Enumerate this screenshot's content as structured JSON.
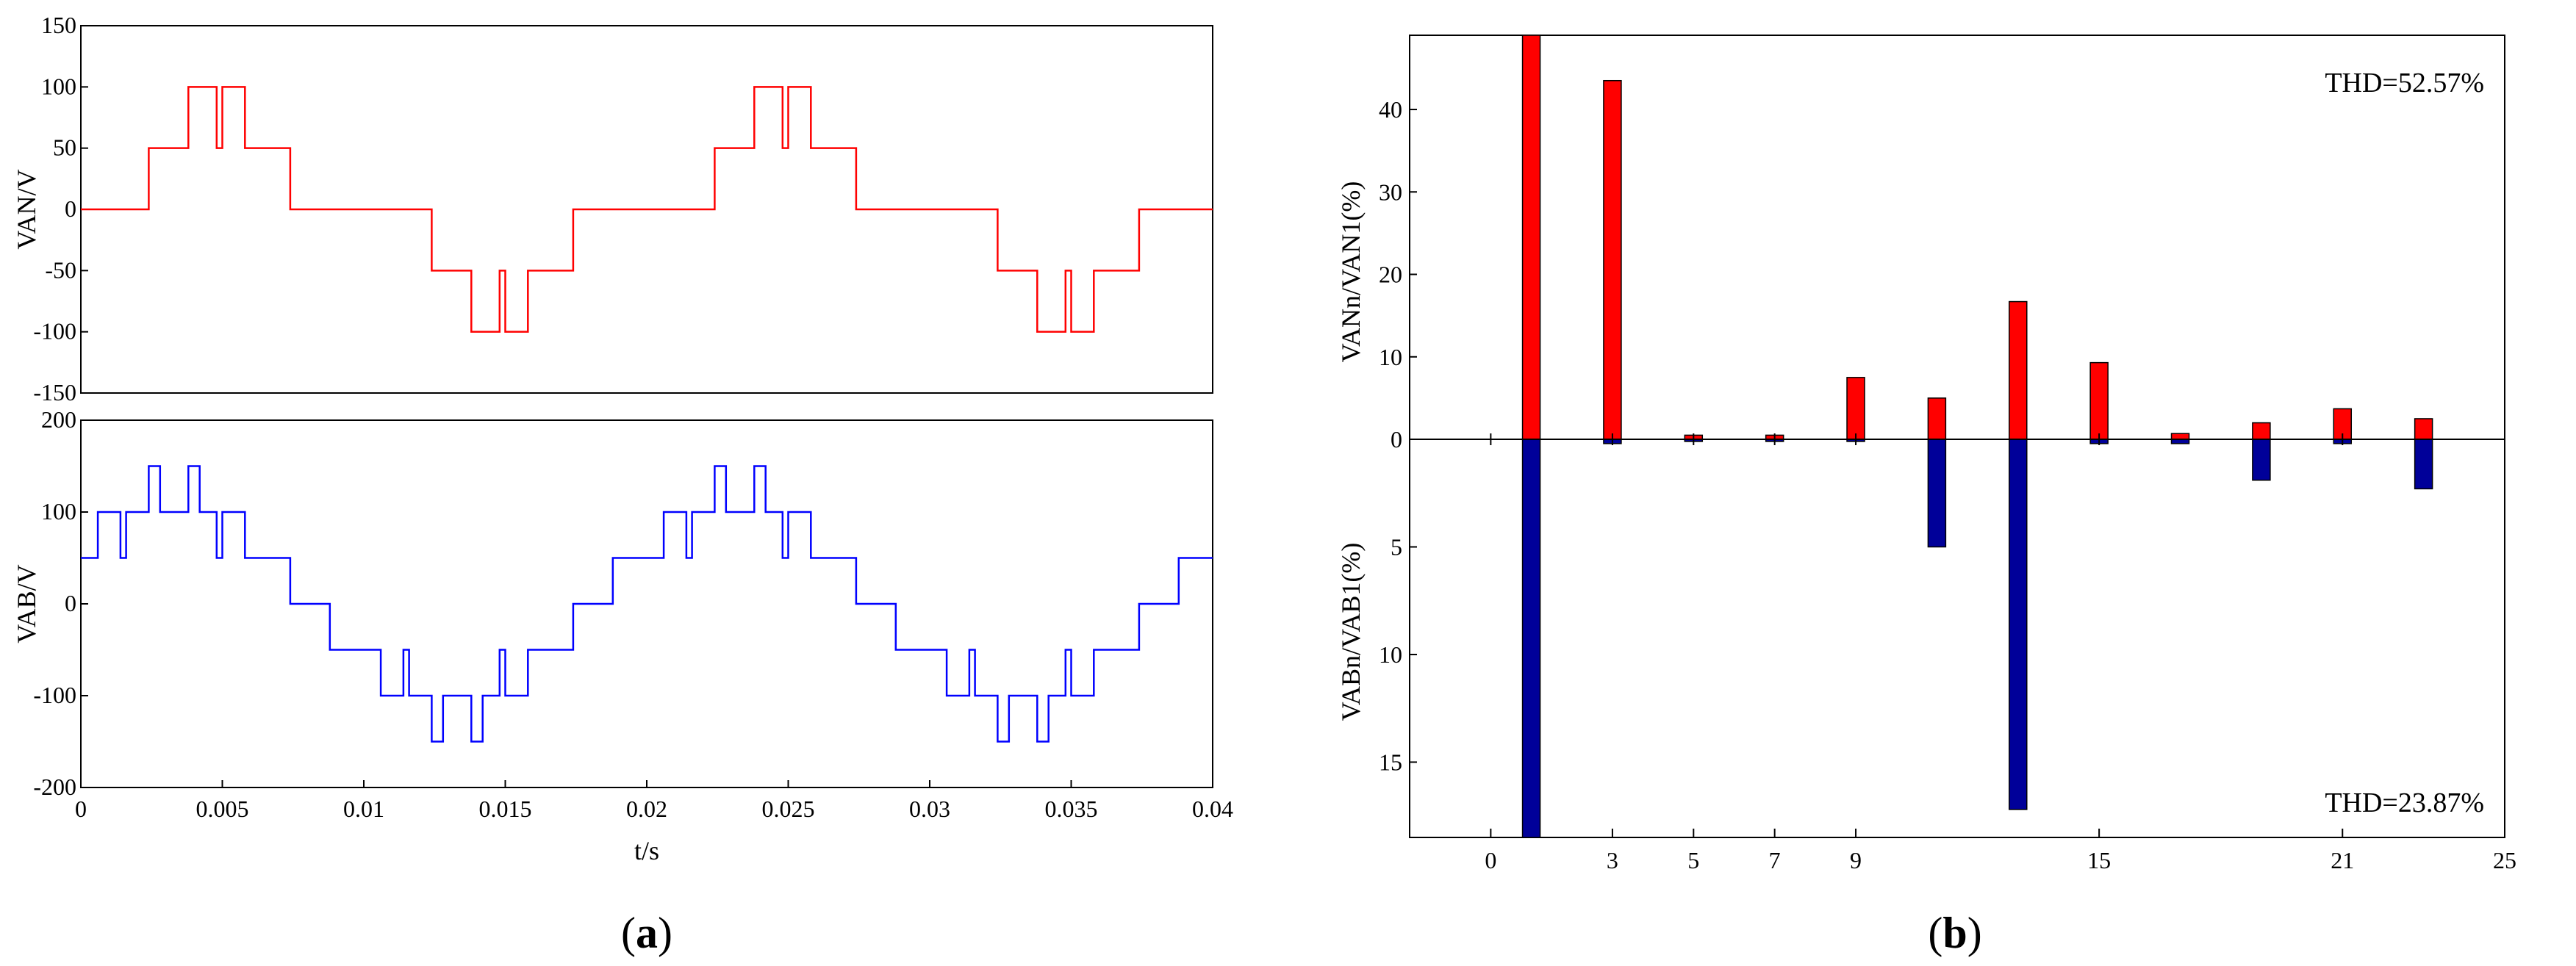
{
  "chart_data": [
    {
      "id": "a-top",
      "type": "line",
      "step": true,
      "ylabel": "VAN/V",
      "ylim": [
        -150,
        150
      ],
      "yticks": [
        150,
        100,
        50,
        0,
        -50,
        -100,
        -150
      ],
      "xlim": [
        0,
        0.04
      ],
      "color": "#ff0000",
      "series": [
        {
          "name": "VAN",
          "points": [
            [
              0,
              0
            ],
            [
              0.0024,
              0
            ],
            [
              0.0024,
              50
            ],
            [
              0.0038,
              50
            ],
            [
              0.0038,
              100
            ],
            [
              0.0048,
              100
            ],
            [
              0.0048,
              50
            ],
            [
              0.005,
              50
            ],
            [
              0.005,
              100
            ],
            [
              0.0058,
              100
            ],
            [
              0.0058,
              50
            ],
            [
              0.0074,
              50
            ],
            [
              0.0074,
              0
            ],
            [
              0.0124,
              0
            ],
            [
              0.0124,
              -50
            ],
            [
              0.0138,
              -50
            ],
            [
              0.0138,
              -100
            ],
            [
              0.0148,
              -100
            ],
            [
              0.0148,
              -50
            ],
            [
              0.015,
              -50
            ],
            [
              0.015,
              -100
            ],
            [
              0.0158,
              -100
            ],
            [
              0.0158,
              -50
            ],
            [
              0.0174,
              -50
            ],
            [
              0.0174,
              0
            ],
            [
              0.0224,
              0
            ],
            [
              0.0224,
              50
            ],
            [
              0.0238,
              50
            ],
            [
              0.0238,
              100
            ],
            [
              0.0248,
              100
            ],
            [
              0.0248,
              50
            ],
            [
              0.025,
              50
            ],
            [
              0.025,
              100
            ],
            [
              0.0258,
              100
            ],
            [
              0.0258,
              50
            ],
            [
              0.0274,
              50
            ],
            [
              0.0274,
              0
            ],
            [
              0.0324,
              0
            ],
            [
              0.0324,
              -50
            ],
            [
              0.0338,
              -50
            ],
            [
              0.0338,
              -100
            ],
            [
              0.0348,
              -100
            ],
            [
              0.0348,
              -50
            ],
            [
              0.035,
              -50
            ],
            [
              0.035,
              -100
            ],
            [
              0.0358,
              -100
            ],
            [
              0.0358,
              -50
            ],
            [
              0.0374,
              -50
            ],
            [
              0.0374,
              0
            ],
            [
              0.04,
              0
            ]
          ]
        }
      ]
    },
    {
      "id": "a-bottom",
      "type": "line",
      "step": true,
      "ylabel": "VAB/V",
      "xlabel": "t/s",
      "ylim": [
        -200,
        200
      ],
      "yticks": [
        200,
        100,
        0,
        -100,
        -200
      ],
      "xlim": [
        0,
        0.04
      ],
      "xticks": [
        0,
        0.005,
        0.01,
        0.015,
        0.02,
        0.025,
        0.03,
        0.035,
        0.04
      ],
      "xtick_labels": [
        "0",
        "0.005",
        "0.01",
        "0.015",
        "0.02",
        "0.025",
        "0.03",
        "0.035",
        "0.04"
      ],
      "color": "#0000ff",
      "series": [
        {
          "name": "VAB",
          "points": [
            [
              0,
              50
            ],
            [
              0.0006,
              50
            ],
            [
              0.0006,
              100
            ],
            [
              0.0014,
              100
            ],
            [
              0.0014,
              50
            ],
            [
              0.0016,
              50
            ],
            [
              0.0016,
              100
            ],
            [
              0.0024,
              100
            ],
            [
              0.0024,
              150
            ],
            [
              0.0028,
              150
            ],
            [
              0.0028,
              100
            ],
            [
              0.0038,
              100
            ],
            [
              0.0038,
              150
            ],
            [
              0.0042,
              150
            ],
            [
              0.0042,
              100
            ],
            [
              0.0048,
              100
            ],
            [
              0.0048,
              50
            ],
            [
              0.005,
              50
            ],
            [
              0.005,
              100
            ],
            [
              0.0058,
              100
            ],
            [
              0.0058,
              50
            ],
            [
              0.0074,
              50
            ],
            [
              0.0074,
              0
            ],
            [
              0.0088,
              0
            ],
            [
              0.0088,
              -50
            ],
            [
              0.0106,
              -50
            ],
            [
              0.0106,
              -100
            ],
            [
              0.0114,
              -100
            ],
            [
              0.0114,
              -50
            ],
            [
              0.0116,
              -50
            ],
            [
              0.0116,
              -100
            ],
            [
              0.0124,
              -100
            ],
            [
              0.0124,
              -150
            ],
            [
              0.0128,
              -150
            ],
            [
              0.0128,
              -100
            ],
            [
              0.0138,
              -100
            ],
            [
              0.0138,
              -150
            ],
            [
              0.0142,
              -150
            ],
            [
              0.0142,
              -100
            ],
            [
              0.0148,
              -100
            ],
            [
              0.0148,
              -50
            ],
            [
              0.015,
              -50
            ],
            [
              0.015,
              -100
            ],
            [
              0.0158,
              -100
            ],
            [
              0.0158,
              -50
            ],
            [
              0.0174,
              -50
            ],
            [
              0.0174,
              0
            ],
            [
              0.0188,
              0
            ],
            [
              0.0188,
              50
            ],
            [
              0.0206,
              50
            ],
            [
              0.0206,
              100
            ],
            [
              0.0214,
              100
            ],
            [
              0.0214,
              50
            ],
            [
              0.0216,
              50
            ],
            [
              0.0216,
              100
            ],
            [
              0.0224,
              100
            ],
            [
              0.0224,
              150
            ],
            [
              0.0228,
              150
            ],
            [
              0.0228,
              100
            ],
            [
              0.0238,
              100
            ],
            [
              0.0238,
              150
            ],
            [
              0.0242,
              150
            ],
            [
              0.0242,
              100
            ],
            [
              0.0248,
              100
            ],
            [
              0.0248,
              50
            ],
            [
              0.025,
              50
            ],
            [
              0.025,
              100
            ],
            [
              0.0258,
              100
            ],
            [
              0.0258,
              50
            ],
            [
              0.0274,
              50
            ],
            [
              0.0274,
              0
            ],
            [
              0.0288,
              0
            ],
            [
              0.0288,
              -50
            ],
            [
              0.0306,
              -50
            ],
            [
              0.0306,
              -100
            ],
            [
              0.0314,
              -100
            ],
            [
              0.0314,
              -50
            ],
            [
              0.0316,
              -50
            ],
            [
              0.0316,
              -100
            ],
            [
              0.0324,
              -100
            ],
            [
              0.0324,
              -150
            ],
            [
              0.0328,
              -150
            ],
            [
              0.0328,
              -100
            ],
            [
              0.0338,
              -100
            ],
            [
              0.0338,
              -150
            ],
            [
              0.0342,
              -150
            ],
            [
              0.0342,
              -100
            ],
            [
              0.0348,
              -100
            ],
            [
              0.0348,
              -50
            ],
            [
              0.035,
              -50
            ],
            [
              0.035,
              -100
            ],
            [
              0.0358,
              -100
            ],
            [
              0.0358,
              -50
            ],
            [
              0.0374,
              -50
            ],
            [
              0.0374,
              0
            ],
            [
              0.0388,
              0
            ],
            [
              0.0388,
              50
            ],
            [
              0.04,
              50
            ]
          ]
        }
      ]
    },
    {
      "id": "b",
      "type": "bar",
      "xlim": [
        -2,
        25
      ],
      "xticks": [
        0,
        3,
        5,
        7,
        9,
        15,
        21,
        25
      ],
      "top": {
        "ylabel": "VANn/VAN1(%)",
        "ylim": [
          0,
          49
        ],
        "yticks": [
          0,
          10,
          20,
          30,
          40
        ],
        "color": "#ff0000",
        "thd": "THD=52.57%",
        "bars": [
          {
            "h": 1,
            "v": 49
          },
          {
            "h": 3,
            "v": 43.5
          },
          {
            "h": 5,
            "v": 0.5
          },
          {
            "h": 7,
            "v": 0.5
          },
          {
            "h": 9,
            "v": 7.5
          },
          {
            "h": 11,
            "v": 5
          },
          {
            "h": 13,
            "v": 16.7
          },
          {
            "h": 15,
            "v": 9.3
          },
          {
            "h": 17,
            "v": 0.7
          },
          {
            "h": 19,
            "v": 2
          },
          {
            "h": 21,
            "v": 3.7
          },
          {
            "h": 23,
            "v": 2.5
          }
        ]
      },
      "bottom": {
        "ylabel": "VABn/VAB1(%)",
        "ylim": [
          0,
          18.5
        ],
        "yticks": [
          5,
          10,
          15
        ],
        "color": "#000099",
        "thd": "THD=23.87%",
        "bars": [
          {
            "h": 1,
            "v": 18.5
          },
          {
            "h": 3,
            "v": 0.2
          },
          {
            "h": 5,
            "v": 0.1
          },
          {
            "h": 7,
            "v": 0.1
          },
          {
            "h": 9,
            "v": 0.1
          },
          {
            "h": 11,
            "v": 5
          },
          {
            "h": 13,
            "v": 17.2
          },
          {
            "h": 15,
            "v": 0.2
          },
          {
            "h": 17,
            "v": 0.2
          },
          {
            "h": 19,
            "v": 1.9
          },
          {
            "h": 21,
            "v": 0.2
          },
          {
            "h": 23,
            "v": 2.3
          }
        ]
      }
    }
  ],
  "labels": {
    "panel_a": "(a)",
    "panel_b": "(b)",
    "panel_a_letter": "a",
    "panel_b_letter": "b"
  }
}
